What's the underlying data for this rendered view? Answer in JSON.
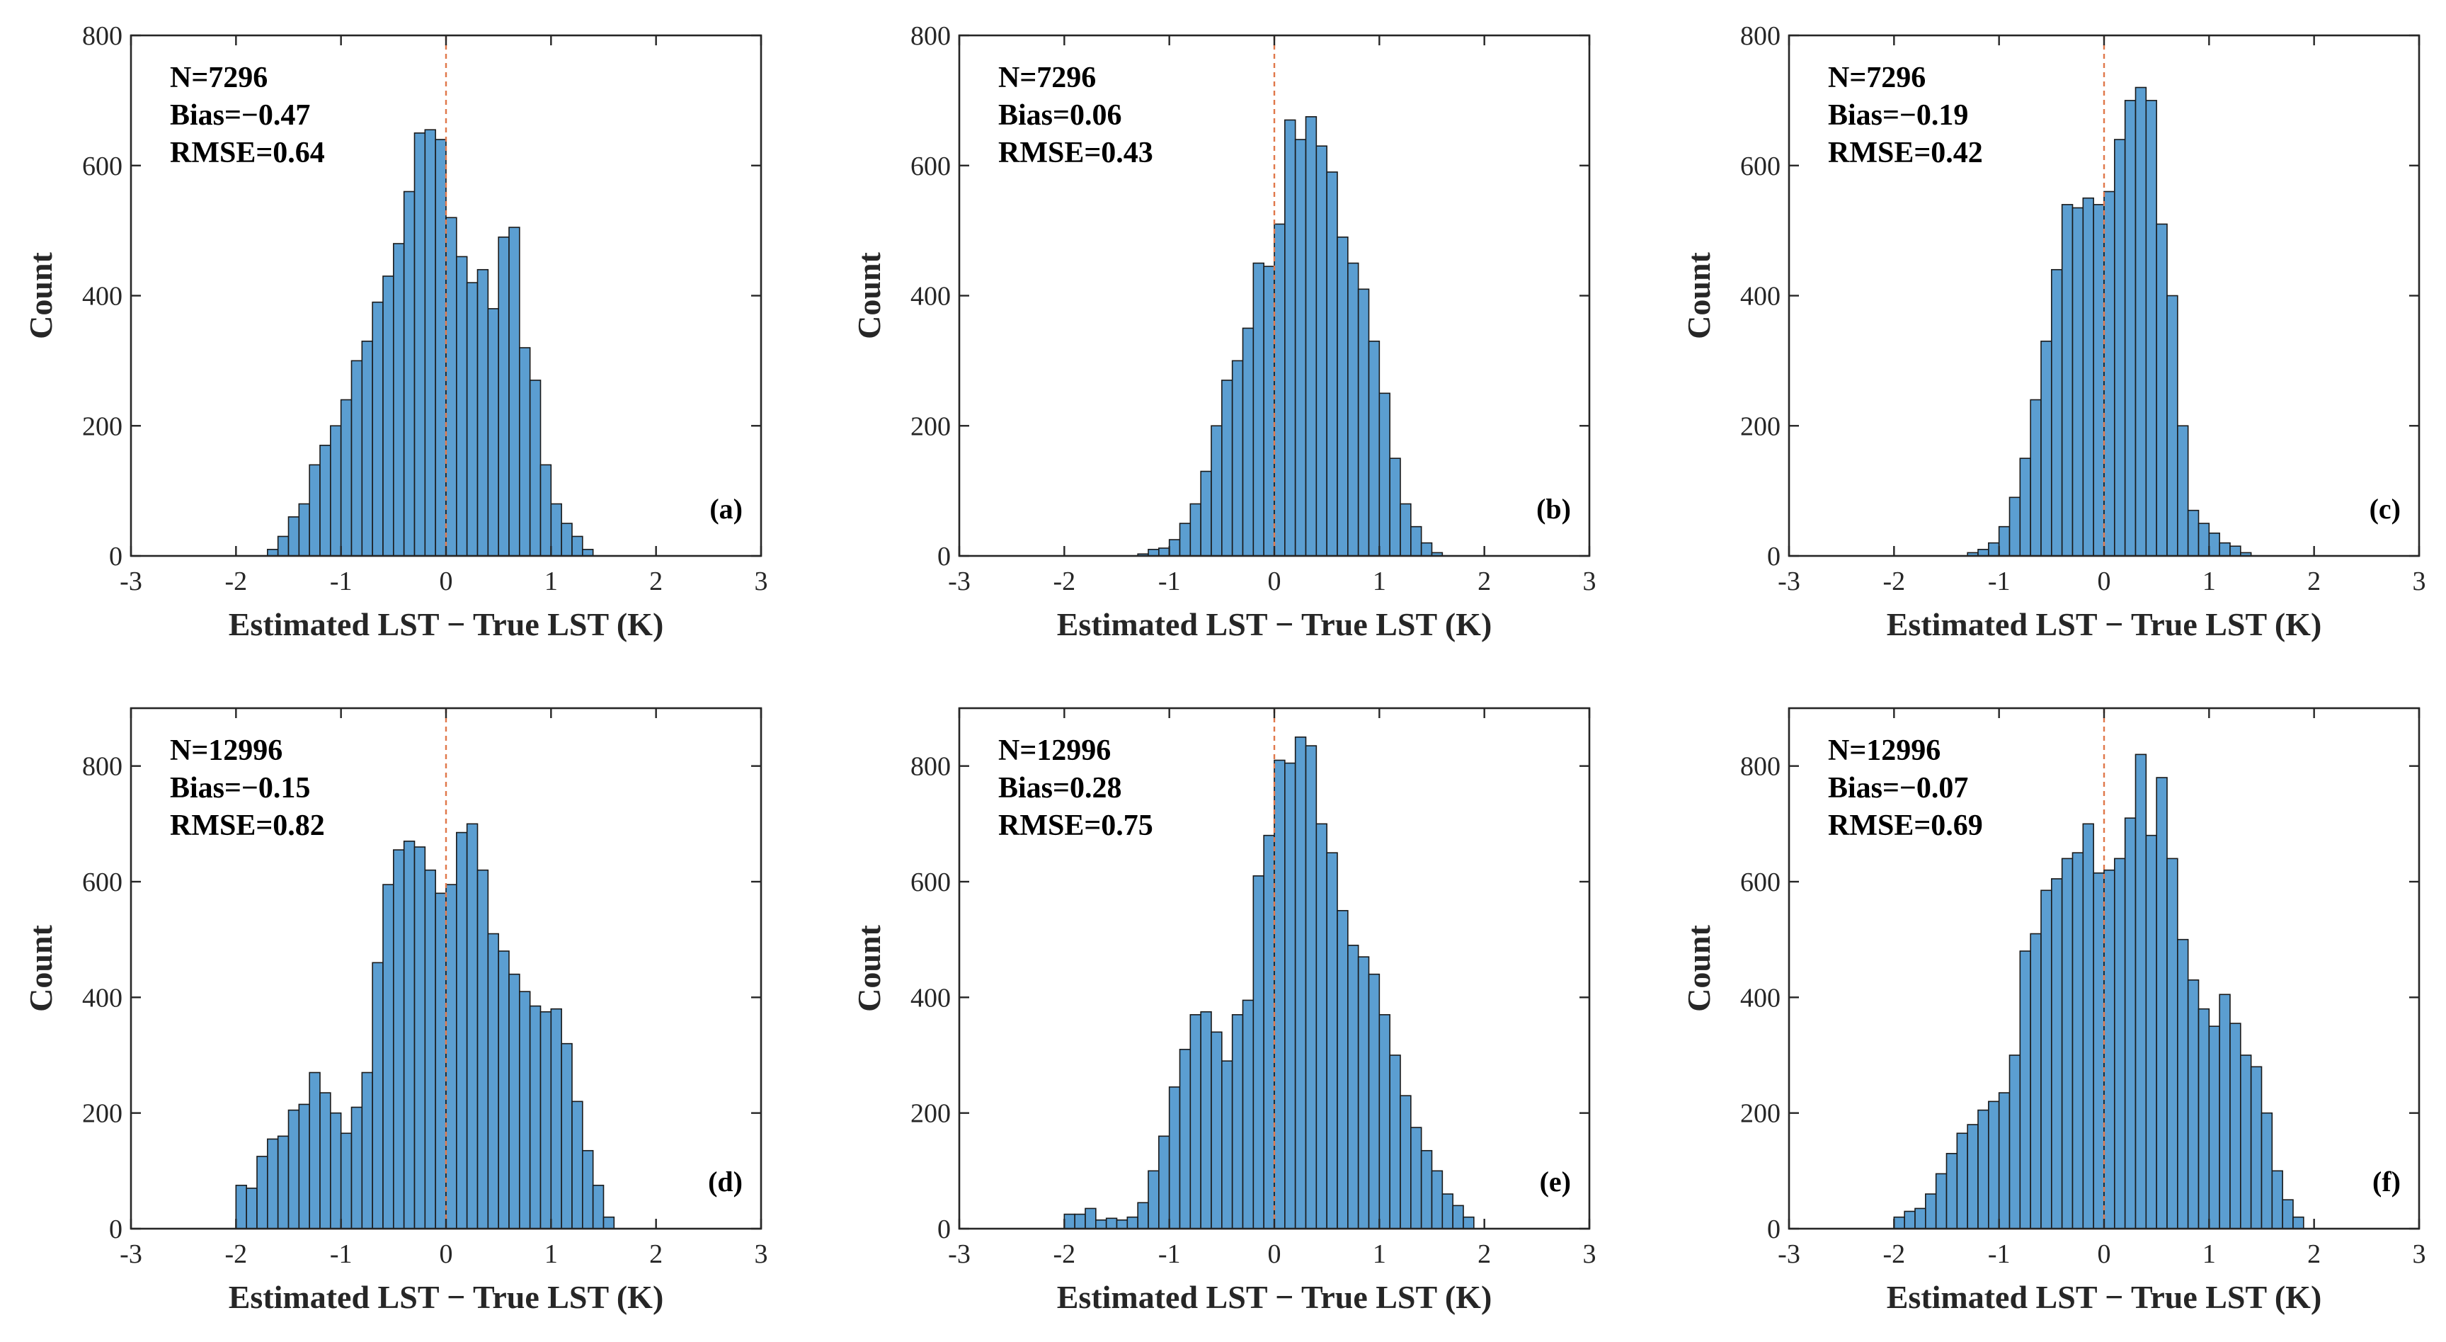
{
  "colors": {
    "bar_fill": "#5b9ed1",
    "bar_edge": "#1a1a1a",
    "axis": "#262626",
    "zero_line": "#e0774a"
  },
  "chart_data": [
    {
      "type": "bar",
      "panel": "(a)",
      "xlabel": "Estimated LST − True LST (K)",
      "ylabel": "Count",
      "xlim": [
        -3,
        3
      ],
      "ylim": [
        0,
        800
      ],
      "xticks": [
        "-3",
        "-2",
        "-1",
        "0",
        "1",
        "2",
        "3"
      ],
      "yticks": [
        "0",
        "200",
        "400",
        "600",
        "800"
      ],
      "stats": [
        "N=7296",
        "Bias=−0.47",
        "RMSE=0.64"
      ],
      "bin_start": -1.7,
      "bin_width": 0.1,
      "values": [
        10,
        30,
        60,
        80,
        140,
        170,
        200,
        240,
        300,
        330,
        390,
        430,
        480,
        560,
        650,
        655,
        640,
        520,
        460,
        420,
        440,
        380,
        490,
        505,
        320,
        270,
        140,
        80,
        50,
        30,
        10
      ]
    },
    {
      "type": "bar",
      "panel": "(b)",
      "xlabel": "Estimated LST − True LST (K)",
      "ylabel": "Count",
      "xlim": [
        -3,
        3
      ],
      "ylim": [
        0,
        800
      ],
      "xticks": [
        "-3",
        "-2",
        "-1",
        "0",
        "1",
        "2",
        "3"
      ],
      "yticks": [
        "0",
        "200",
        "400",
        "600",
        "800"
      ],
      "stats": [
        "N=7296",
        "Bias=0.06",
        "RMSE=0.43"
      ],
      "bin_start": -1.3,
      "bin_width": 0.1,
      "values": [
        3,
        10,
        12,
        25,
        50,
        80,
        130,
        200,
        270,
        300,
        350,
        450,
        445,
        510,
        670,
        640,
        675,
        630,
        590,
        490,
        450,
        410,
        330,
        250,
        150,
        80,
        45,
        20,
        5
      ]
    },
    {
      "type": "bar",
      "panel": "(c)",
      "xlabel": "Estimated LST − True LST (K)",
      "ylabel": "Count",
      "xlim": [
        -3,
        3
      ],
      "ylim": [
        0,
        800
      ],
      "xticks": [
        "-3",
        "-2",
        "-1",
        "0",
        "1",
        "2",
        "3"
      ],
      "yticks": [
        "0",
        "200",
        "400",
        "600",
        "800"
      ],
      "stats": [
        "N=7296",
        "Bias=−0.19",
        "RMSE=0.42"
      ],
      "bin_start": -1.3,
      "bin_width": 0.1,
      "values": [
        5,
        10,
        20,
        45,
        90,
        150,
        240,
        330,
        440,
        540,
        535,
        550,
        540,
        560,
        640,
        700,
        720,
        700,
        510,
        400,
        200,
        70,
        50,
        35,
        20,
        15,
        5
      ]
    },
    {
      "type": "bar",
      "panel": "(d)",
      "xlabel": "Estimated LST − True LST (K)",
      "ylabel": "Count",
      "xlim": [
        -3,
        3
      ],
      "ylim": [
        0,
        900
      ],
      "xticks": [
        "-3",
        "-2",
        "-1",
        "0",
        "1",
        "2",
        "3"
      ],
      "yticks": [
        "0",
        "200",
        "400",
        "600",
        "800"
      ],
      "stats": [
        "N=12996",
        "Bias=−0.15",
        "RMSE=0.82"
      ],
      "bin_start": -2.0,
      "bin_width": 0.1,
      "values": [
        75,
        70,
        125,
        155,
        160,
        205,
        215,
        270,
        235,
        200,
        165,
        210,
        270,
        460,
        595,
        655,
        670,
        660,
        620,
        580,
        595,
        685,
        700,
        620,
        510,
        480,
        440,
        410,
        385,
        375,
        380,
        320,
        220,
        135,
        75,
        20
      ]
    },
    {
      "type": "bar",
      "panel": "(e)",
      "xlabel": "Estimated LST − True LST (K)",
      "ylabel": "Count",
      "xlim": [
        -3,
        3
      ],
      "ylim": [
        0,
        900
      ],
      "xticks": [
        "-3",
        "-2",
        "-1",
        "0",
        "1",
        "2",
        "3"
      ],
      "yticks": [
        "0",
        "200",
        "400",
        "600",
        "800"
      ],
      "stats": [
        "N=12996",
        "Bias=0.28",
        "RMSE=0.75"
      ],
      "bin_start": -2.0,
      "bin_width": 0.1,
      "values": [
        25,
        25,
        35,
        15,
        18,
        15,
        20,
        45,
        100,
        160,
        245,
        310,
        370,
        375,
        340,
        290,
        370,
        395,
        610,
        680,
        810,
        805,
        850,
        835,
        700,
        650,
        550,
        490,
        470,
        440,
        370,
        300,
        230,
        175,
        135,
        100,
        60,
        40,
        20
      ]
    },
    {
      "type": "bar",
      "panel": "(f)",
      "xlabel": "Estimated LST − True LST (K)",
      "ylabel": "Count",
      "xlim": [
        -3,
        3
      ],
      "ylim": [
        0,
        900
      ],
      "xticks": [
        "-3",
        "-2",
        "-1",
        "0",
        "1",
        "2",
        "3"
      ],
      "yticks": [
        "0",
        "200",
        "400",
        "600",
        "800"
      ],
      "stats": [
        "N=12996",
        "Bias=−0.07",
        "RMSE=0.69"
      ],
      "bin_start": -2.0,
      "bin_width": 0.1,
      "values": [
        20,
        30,
        35,
        60,
        95,
        130,
        165,
        180,
        205,
        220,
        235,
        300,
        480,
        510,
        585,
        605,
        640,
        650,
        700,
        615,
        620,
        640,
        710,
        820,
        680,
        780,
        640,
        500,
        430,
        380,
        350,
        405,
        355,
        300,
        280,
        200,
        100,
        50,
        20
      ]
    }
  ]
}
